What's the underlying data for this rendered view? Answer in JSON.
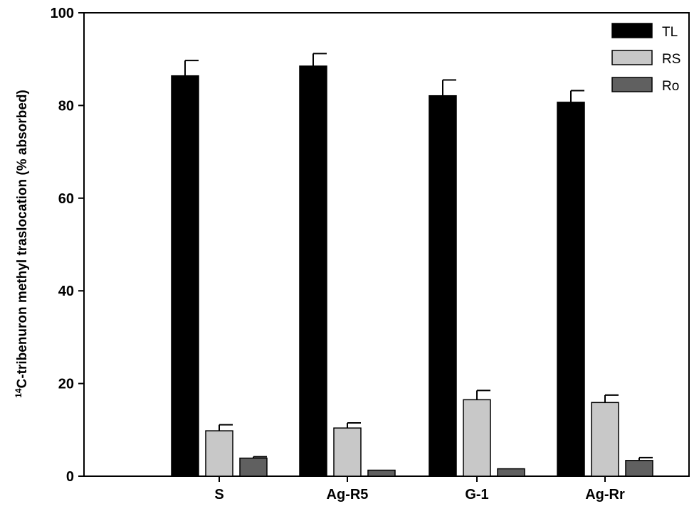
{
  "chart_data": {
    "type": "bar",
    "categories": [
      "S",
      "Ag-R5",
      "G-1",
      "Ag-Rr"
    ],
    "series": [
      {
        "name": "TL",
        "values": [
          86.4,
          88.5,
          82.1,
          80.7
        ],
        "errors": [
          3.3,
          2.7,
          3.4,
          2.5
        ],
        "color": "#000000"
      },
      {
        "name": "RS",
        "values": [
          9.8,
          10.4,
          16.5,
          15.9
        ],
        "errors": [
          1.3,
          1.1,
          2.0,
          1.6
        ],
        "color": "#c8c8c8"
      },
      {
        "name": "Ro",
        "values": [
          3.9,
          1.3,
          1.6,
          3.4
        ],
        "errors": [
          0.3,
          0.0,
          0.0,
          0.6
        ],
        "color": "#606060"
      }
    ],
    "title": "",
    "xlabel": "",
    "ylabel_sup": "14",
    "ylabel": "C-tribenuron methyl traslocation (% absorbed)",
    "ylim": [
      0,
      100
    ],
    "yticks": [
      0,
      20,
      40,
      60,
      80,
      100
    ],
    "grid": false,
    "legend_position": "top-right"
  }
}
